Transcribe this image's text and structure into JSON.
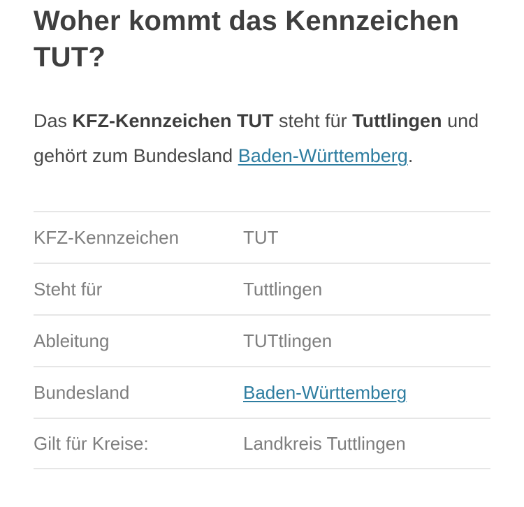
{
  "page": {
    "title": "Woher kommt das Kennzeichen TUT?"
  },
  "intro": {
    "parts": [
      {
        "text": "Das "
      },
      {
        "text": "KFZ-Kennzeichen TUT",
        "bold": true
      },
      {
        "text": " steht für "
      },
      {
        "text": "Tuttlingen",
        "bold": true
      },
      {
        "text": " und gehört zum Bundesland "
      },
      {
        "text": "Baden-Württemberg",
        "link": true
      },
      {
        "text": "."
      }
    ]
  },
  "table": {
    "rows": [
      {
        "label": "KFZ-Kennzeichen",
        "value": "TUT"
      },
      {
        "label": "Steht für",
        "value": "Tuttlingen"
      },
      {
        "label": "Ableitung",
        "value": "TUTtlingen"
      },
      {
        "label": "Bundesland",
        "value": "Baden-Württemberg",
        "value_is_link": true
      },
      {
        "label": "Gilt für Kreise:",
        "value": "Landkreis Tuttlingen"
      }
    ]
  },
  "colors": {
    "link": "#2e7da0",
    "heading_text": "#3f3f3f",
    "body_text": "#484848",
    "table_text": "#7e7e7e",
    "divider": "#e6e6e6",
    "background": "#ffffff"
  }
}
